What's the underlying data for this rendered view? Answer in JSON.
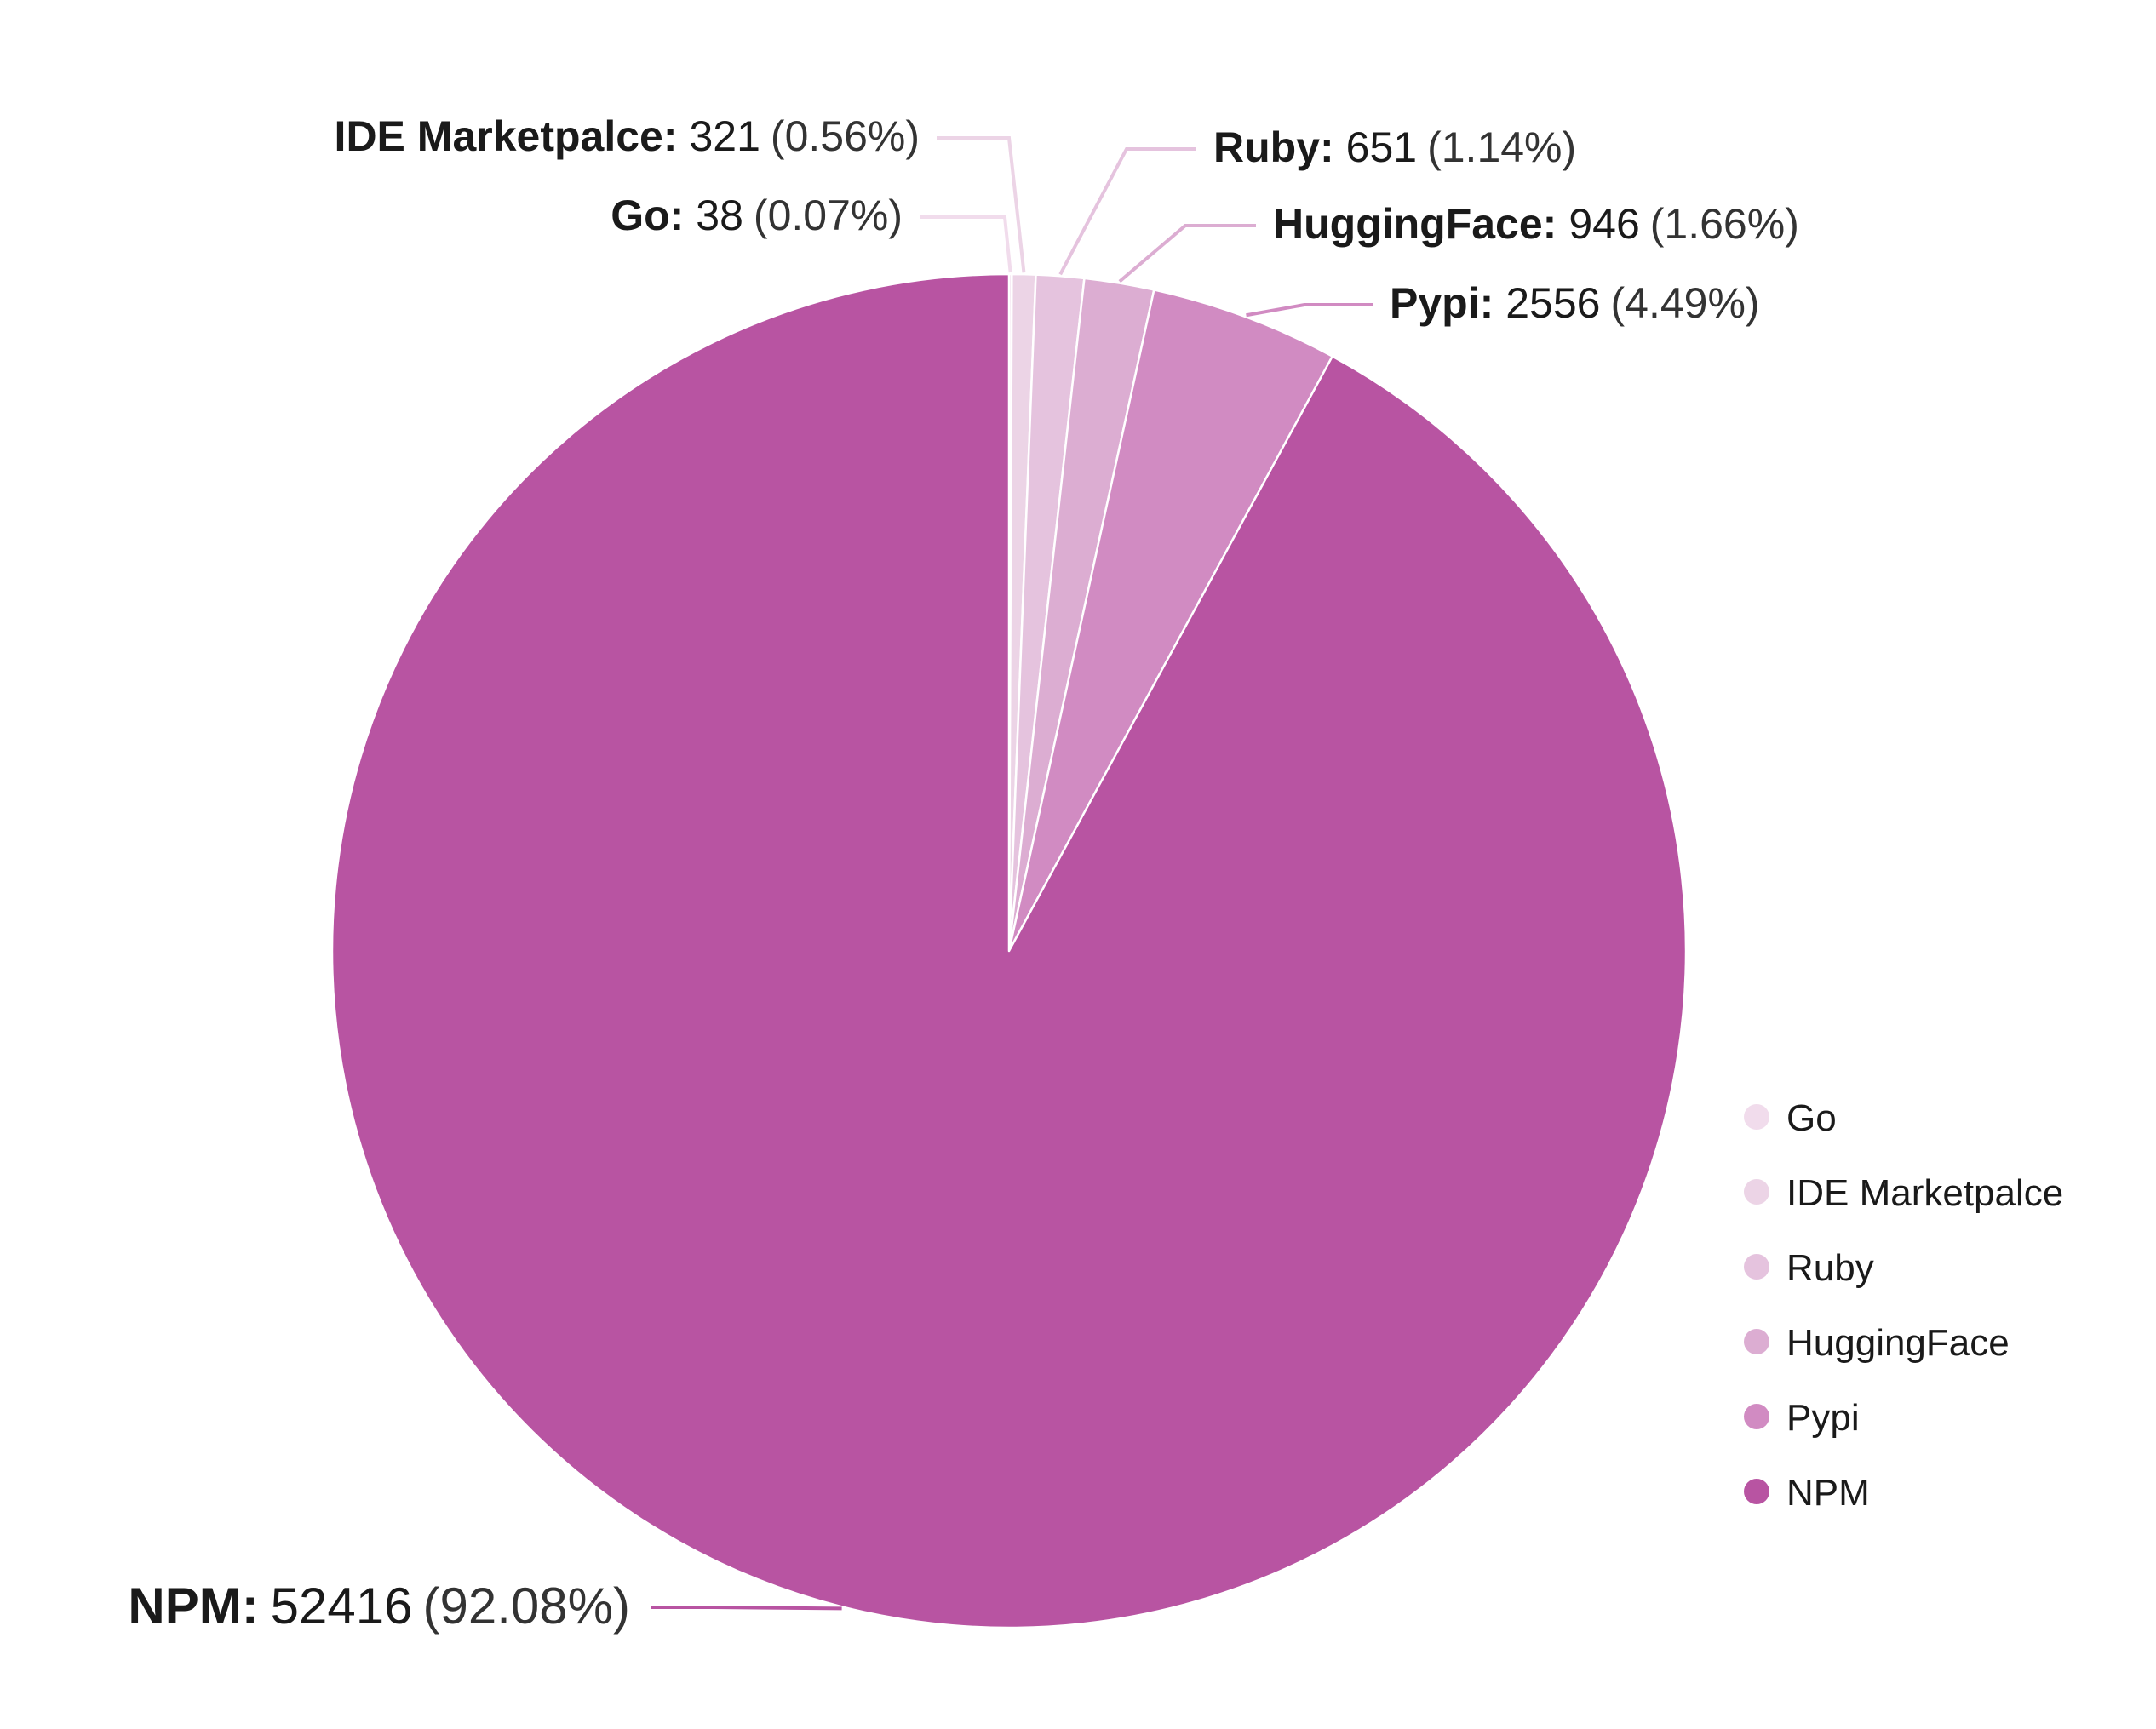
{
  "chart_data": {
    "type": "pie",
    "title": "",
    "slices": [
      {
        "label": "Go",
        "value": 38,
        "percent_text": "(0.07%)",
        "color": "#f1dcec"
      },
      {
        "label": "IDE Marketpalce",
        "value": 321,
        "percent_text": "(0.56%)",
        "color": "#ecd4e6"
      },
      {
        "label": "Ruby",
        "value": 651,
        "percent_text": "(1.14%)",
        "color": "#e5c3de"
      },
      {
        "label": "HuggingFace",
        "value": 946,
        "percent_text": "(1.66%)",
        "color": "#dcadd2"
      },
      {
        "label": "Pypi",
        "value": 2556,
        "percent_text": "(4.49%)",
        "color": "#d18bc2"
      },
      {
        "label": "NPM",
        "value": 52416,
        "percent_text": "(92.08%)",
        "color": "#b854a2"
      }
    ],
    "legend": {
      "position": "bottom-right",
      "items": [
        "Go",
        "IDE Marketpalce",
        "Ruby",
        "HuggingFace",
        "Pypi",
        "NPM"
      ]
    }
  }
}
